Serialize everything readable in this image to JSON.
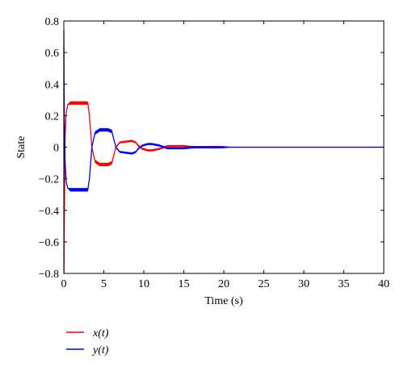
{
  "chart_data": {
    "type": "line",
    "title": "",
    "xlabel": "Time (s)",
    "ylabel": "State",
    "xlim": [
      0,
      40
    ],
    "ylim": [
      -0.8,
      0.8
    ],
    "x_ticks": [
      0,
      5,
      10,
      15,
      20,
      25,
      30,
      35,
      40
    ],
    "y_ticks": [
      -0.8,
      -0.6,
      -0.4,
      -0.2,
      0,
      0.2,
      0.4,
      0.6,
      0.8
    ],
    "x_tick_labels": [
      "0",
      "5",
      "10",
      "15",
      "20",
      "25",
      "30",
      "35",
      "40"
    ],
    "y_tick_labels": [
      "−0.8",
      "−0.6",
      "−0.4",
      "−0.2",
      "0",
      "0.2",
      "0.4",
      "0.6",
      "0.8"
    ],
    "grid": false,
    "legend_position": "below-left",
    "series": [
      {
        "name": "x(t)",
        "legend_label": "x(t)",
        "color": "#ff0000",
        "band_width": 0.022,
        "x": [
          0,
          0.02,
          0.06,
          0.15,
          0.3,
          0.5,
          0.8,
          1.1,
          3.0,
          3.2,
          3.5,
          3.9,
          4.5,
          5.5,
          6.0,
          6.2,
          6.5,
          7.0,
          8.5,
          9.0,
          9.3,
          9.8,
          10.5,
          11.0,
          12.0,
          12.5,
          13.0,
          13.5,
          15.0,
          15.5,
          16.0,
          17.0,
          18.0,
          19.0,
          19.5,
          20.0,
          21.0,
          40.0
        ],
        "y": [
          0.64,
          -0.8,
          -0.5,
          0.05,
          0.22,
          0.27,
          0.28,
          0.28,
          0.28,
          0.2,
          0.0,
          -0.09,
          -0.11,
          -0.11,
          -0.1,
          -0.06,
          0.0,
          0.03,
          0.04,
          0.03,
          0.01,
          -0.01,
          -0.02,
          -0.02,
          -0.01,
          0.0,
          0.007,
          0.007,
          0.007,
          0.004,
          0.002,
          0.001,
          0.001,
          0.002,
          0.001,
          0.0,
          0.0,
          0.0
        ]
      },
      {
        "name": "y(t)",
        "legend_label": "y(t)",
        "color": "#0000ff",
        "band_width": 0.022,
        "x": [
          0,
          0.02,
          0.06,
          0.15,
          0.3,
          0.5,
          0.8,
          1.1,
          3.0,
          3.2,
          3.5,
          3.9,
          4.5,
          5.5,
          6.0,
          6.2,
          6.5,
          7.0,
          8.5,
          9.0,
          9.3,
          9.8,
          10.5,
          11.0,
          12.0,
          12.5,
          13.0,
          13.5,
          15.0,
          15.5,
          16.0,
          17.0,
          18.0,
          19.0,
          19.5,
          20.0,
          21.0,
          40.0
        ],
        "y": [
          0.74,
          0.45,
          0.2,
          -0.08,
          -0.22,
          -0.26,
          -0.27,
          -0.27,
          -0.27,
          -0.2,
          0.0,
          0.09,
          0.11,
          0.11,
          0.1,
          0.06,
          0.0,
          -0.03,
          -0.04,
          -0.03,
          -0.01,
          0.01,
          0.02,
          0.02,
          0.01,
          0.0,
          -0.007,
          -0.007,
          -0.007,
          -0.004,
          -0.002,
          -0.001,
          -0.001,
          -0.002,
          -0.001,
          0.0,
          0.0,
          0.0
        ]
      }
    ]
  }
}
